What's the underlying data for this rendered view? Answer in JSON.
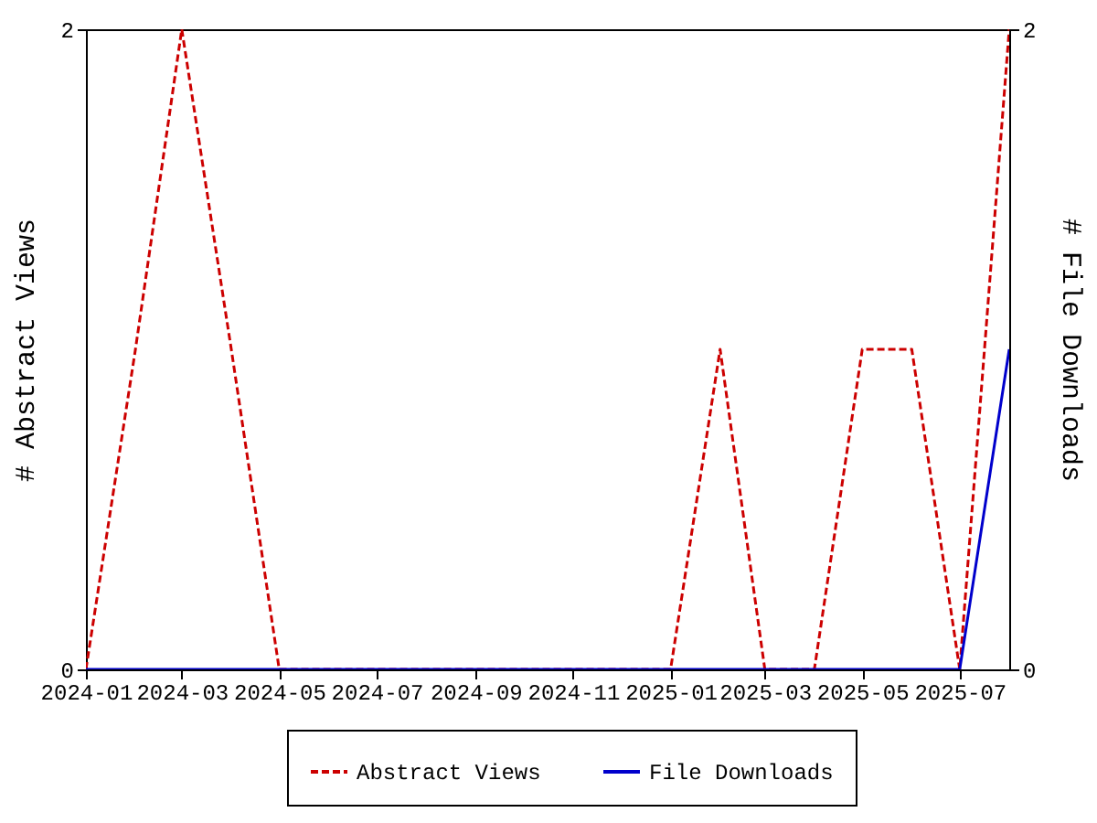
{
  "chart_data": {
    "type": "line",
    "xlabel": null,
    "ylabel": "# Abstract Views",
    "y2label": "# File Downloads",
    "x": [
      "2024-01",
      "2024-02",
      "2024-03",
      "2024-04",
      "2024-05",
      "2024-06",
      "2024-07",
      "2024-08",
      "2024-09",
      "2024-10",
      "2024-11",
      "2024-12",
      "2025-01",
      "2025-02",
      "2025-03",
      "2025-04",
      "2025-05",
      "2025-06",
      "2025-07",
      "2025-08"
    ],
    "series": [
      {
        "name": "Abstract Views",
        "color": "#cc0000",
        "line_style": "dashed",
        "values": [
          0,
          1,
          2,
          1,
          0,
          0,
          0,
          0,
          0,
          0,
          0,
          0,
          0,
          1,
          0,
          0,
          1,
          1,
          0,
          2
        ]
      },
      {
        "name": "File Downloads",
        "color": "#0000cc",
        "line_style": "solid",
        "axis": "y2",
        "values": [
          0,
          0,
          0,
          0,
          0,
          0,
          0,
          0,
          0,
          0,
          0,
          0,
          0,
          0,
          0,
          0,
          0,
          0,
          0,
          1
        ]
      }
    ],
    "xlim": [
      "2024-01",
      "2025-08"
    ],
    "xticks": [
      "2024-01",
      "2024-03",
      "2024-05",
      "2024-07",
      "2024-09",
      "2024-11",
      "2025-01",
      "2025-03",
      "2025-05",
      "2025-07"
    ],
    "ylim": [
      0,
      2
    ],
    "yticks": [
      0,
      2
    ],
    "y2lim": [
      0,
      2
    ],
    "y2ticks": [
      0,
      2
    ],
    "grid": false,
    "legend": "bottom"
  }
}
